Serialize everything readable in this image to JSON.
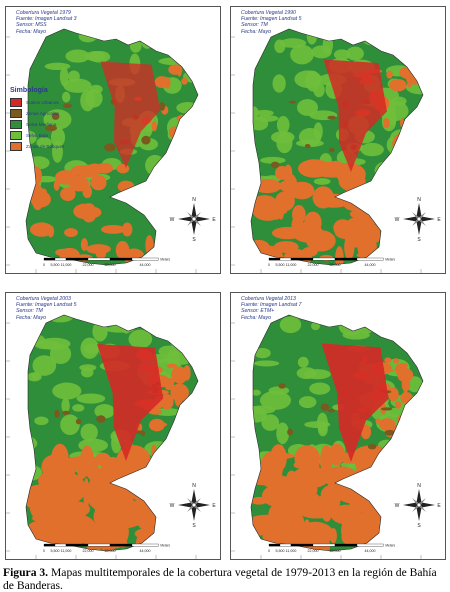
{
  "colors": {
    "urban": "#d42a26",
    "agri": "#7a5a1e",
    "selva_mediana": "#2f8e3a",
    "selva_baja": "#6fbf3c",
    "bosques": "#e0702c",
    "frame": "#555555",
    "text": "#2a3a8a"
  },
  "panels": [
    {
      "title": "Cobertura Vegetal 1979",
      "source": "Fuente: Imagen Landsat 3",
      "sensor": "Sensor: MSS",
      "date": "Fecha: Mayo",
      "has_legend": true,
      "orange_level": 0.25,
      "red_level": 0.55
    },
    {
      "title": "Cobertura Vegetal 1990",
      "source": "Fuente: Imagen Landsat 5",
      "sensor": "Sensor: TM",
      "date": "Fecha: Mayo",
      "has_legend": false,
      "orange_level": 0.55,
      "red_level": 0.75
    },
    {
      "title": "Cobertura Vegetal 2003",
      "source": "Fuente: Imagen Landsat 5",
      "sensor": "Sensor: TM",
      "date": "Fecha: Mayo",
      "has_legend": false,
      "orange_level": 0.85,
      "red_level": 0.9
    },
    {
      "title": "Cobertura Vegetal 2013",
      "source": "Fuente: Imagen Landsat 7",
      "sensor": "Sensor: ETM+",
      "date": "Fecha: Mayo",
      "has_legend": false,
      "orange_level": 0.8,
      "red_level": 0.95
    }
  ],
  "legend": {
    "title": "Simbología",
    "items": [
      {
        "label": "Suelos Urbanos",
        "color": "#d42a26"
      },
      {
        "label": "Zonas Agrícolas",
        "color": "#7a5a1e"
      },
      {
        "label": "Selva Mediana",
        "color": "#2f8e3a"
      },
      {
        "label": "Selva Baja",
        "color": "#6fbf3c"
      },
      {
        "label": "Zonas de Bosques",
        "color": "#e0702c"
      }
    ]
  },
  "scale": {
    "ticks": [
      "0",
      "5,500",
      "11,000",
      "22,000",
      "33,000",
      "44,000"
    ],
    "unit": "Meters"
  },
  "compass": {
    "n": "N",
    "s": "S",
    "e": "E",
    "w": "W"
  },
  "caption": {
    "label": "Figura 3.",
    "text": " Mapas multitemporales de la cobertura vegetal de 1979-2013 en la región de Bahía de Banderas."
  }
}
